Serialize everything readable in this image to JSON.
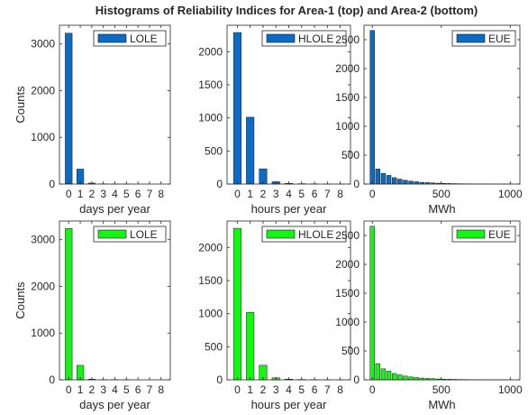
{
  "figure": {
    "title": "Histograms of Reliability Indices for Area-1 (top) and Area-2 (bottom)"
  },
  "colors": {
    "area1": "#0a6cc4",
    "area2": "#14f514"
  },
  "chart_data": [
    {
      "type": "bar",
      "panel": "area1-lole",
      "xlabel": "days per year",
      "ylabel": "Counts",
      "legend": "LOLE",
      "legend_position": "top-right",
      "color": "#0a6cc4",
      "bar_width": 0.6,
      "x": [
        0,
        1,
        2,
        3,
        4,
        5,
        6,
        7,
        8
      ],
      "values": [
        3230,
        320,
        20,
        5,
        2,
        1,
        0,
        0,
        0
      ],
      "xlim": [
        -0.8,
        8.8
      ],
      "ylim": [
        0,
        3400
      ],
      "xticks": [
        0,
        1,
        2,
        3,
        4,
        5,
        6,
        7,
        8
      ],
      "yticks": [
        0,
        1000,
        2000,
        3000
      ]
    },
    {
      "type": "bar",
      "panel": "area1-hlole",
      "xlabel": "hours per year",
      "ylabel": "",
      "legend": "HLOLE",
      "legend_position": "top-right",
      "color": "#0a6cc4",
      "bar_width": 0.6,
      "x": [
        0,
        1,
        2,
        3,
        4,
        5,
        6,
        7,
        8
      ],
      "values": [
        2290,
        1010,
        230,
        35,
        10,
        5,
        3,
        1,
        1
      ],
      "xlim": [
        -0.8,
        8.8
      ],
      "ylim": [
        0,
        2400
      ],
      "xticks": [
        0,
        1,
        2,
        3,
        4,
        5,
        6,
        7,
        8
      ],
      "yticks": [
        0,
        500,
        1000,
        1500,
        2000
      ]
    },
    {
      "type": "bar",
      "panel": "area1-eue",
      "xlabel": "MWh",
      "ylabel": "",
      "legend": "EUE",
      "legend_position": "top-right",
      "color": "#0a6cc4",
      "bar_width": 0.8,
      "bin_width": 40,
      "x": [
        0,
        40,
        80,
        120,
        160,
        200,
        240,
        280,
        320,
        360,
        400,
        440,
        480,
        520,
        560,
        600,
        640,
        680,
        720,
        760,
        800,
        840,
        880,
        920,
        960,
        1000
      ],
      "values": [
        2660,
        260,
        185,
        150,
        110,
        85,
        65,
        50,
        40,
        30,
        25,
        20,
        15,
        12,
        10,
        8,
        6,
        5,
        4,
        3,
        2,
        2,
        1,
        1,
        1,
        1
      ],
      "xlim": [
        -60,
        1070
      ],
      "ylim": [
        0,
        2750
      ],
      "xticks": [
        0,
        500,
        1000
      ],
      "yticks": [
        0,
        500,
        1000,
        1500,
        2000,
        2500
      ]
    },
    {
      "type": "bar",
      "panel": "area2-lole",
      "xlabel": "days per year",
      "ylabel": "Counts",
      "legend": "LOLE",
      "legend_position": "top-right",
      "color": "#14f514",
      "bar_width": 0.6,
      "x": [
        0,
        1,
        2,
        3,
        4,
        5,
        6,
        7,
        8
      ],
      "values": [
        3240,
        310,
        15,
        4,
        2,
        1,
        0,
        0,
        0
      ],
      "xlim": [
        -0.8,
        8.8
      ],
      "ylim": [
        0,
        3400
      ],
      "xticks": [
        0,
        1,
        2,
        3,
        4,
        5,
        6,
        7,
        8
      ],
      "yticks": [
        0,
        1000,
        2000,
        3000
      ]
    },
    {
      "type": "bar",
      "panel": "area2-hlole",
      "xlabel": "hours per year",
      "ylabel": "",
      "legend": "HLOLE",
      "legend_position": "top-right",
      "color": "#14f514",
      "bar_width": 0.6,
      "x": [
        0,
        1,
        2,
        3,
        4,
        5,
        6,
        7,
        8
      ],
      "values": [
        2290,
        1020,
        220,
        30,
        10,
        5,
        3,
        1,
        1
      ],
      "xlim": [
        -0.8,
        8.8
      ],
      "ylim": [
        0,
        2400
      ],
      "xticks": [
        0,
        1,
        2,
        3,
        4,
        5,
        6,
        7,
        8
      ],
      "yticks": [
        0,
        500,
        1000,
        1500,
        2000
      ]
    },
    {
      "type": "bar",
      "panel": "area2-eue",
      "xlabel": "MWh",
      "ylabel": "",
      "legend": "EUE",
      "legend_position": "top-right",
      "color": "#14f514",
      "bar_width": 0.8,
      "bin_width": 40,
      "x": [
        0,
        40,
        80,
        120,
        160,
        200,
        240,
        280,
        320,
        360,
        400,
        440,
        480,
        520,
        560,
        600,
        640,
        680,
        720,
        760,
        800,
        840,
        880,
        920,
        960,
        1000
      ],
      "values": [
        2660,
        280,
        190,
        150,
        110,
        85,
        65,
        50,
        40,
        30,
        25,
        20,
        15,
        12,
        10,
        8,
        6,
        5,
        4,
        3,
        2,
        2,
        1,
        1,
        1,
        1
      ],
      "xlim": [
        -60,
        1070
      ],
      "ylim": [
        0,
        2750
      ],
      "xticks": [
        0,
        500,
        1000
      ],
      "yticks": [
        0,
        500,
        1000,
        1500,
        2000,
        2500
      ]
    }
  ]
}
